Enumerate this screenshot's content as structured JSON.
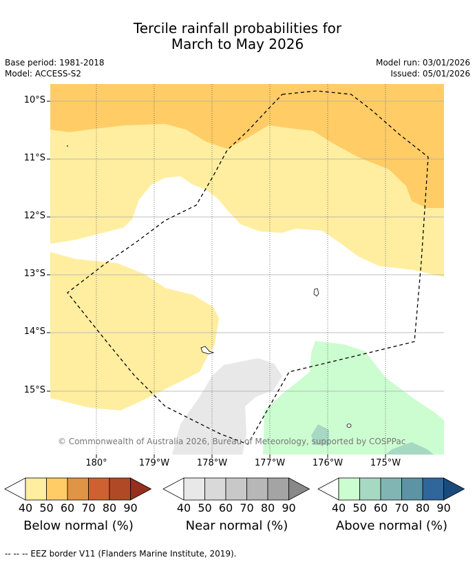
{
  "title_line1": "Tercile rainfall probabilities for",
  "title_line2": "March to May 2026",
  "meta": {
    "base_period": "Base period: 1981-2018",
    "model": "Model: ACCESS-S2",
    "model_run": "Model run: 03/01/2026",
    "issued": "Issued: 05/01/2026"
  },
  "lat_labels": [
    "10°S",
    "11°S",
    "12°S",
    "13°S",
    "14°S",
    "15°S"
  ],
  "lon_labels": [
    "180°",
    "179°W",
    "178°W",
    "177°W",
    "176°W",
    "175°W"
  ],
  "credit": "© Commonwealth of Australia 2026, Bureau of Meteorology, supported by COSPPac",
  "colorbars": [
    {
      "label": "Below normal (%)",
      "ticks": [
        "40",
        "50",
        "60",
        "70",
        "80",
        "90"
      ],
      "colors": [
        "#ffeea0",
        "#ffcc66",
        "#e09446",
        "#cd6230",
        "#b04a26",
        "#962f1f"
      ]
    },
    {
      "label": "Near normal (%)",
      "ticks": [
        "40",
        "50",
        "60",
        "70",
        "80",
        "90"
      ],
      "colors": [
        "#e8e8e8",
        "#d9d9d9",
        "#c8c8c8",
        "#b7b7b7",
        "#a4a4a4",
        "#888888"
      ]
    },
    {
      "label": "Above normal (%)",
      "ticks": [
        "40",
        "50",
        "60",
        "70",
        "80",
        "90"
      ],
      "colors": [
        "#ccfdd0",
        "#a6d8c2",
        "#80b5b3",
        "#5a94a5",
        "#306699",
        "#1a4a7c"
      ]
    }
  ],
  "footer": "--  --  -- EEZ border V11 (Flanders Marine Institute, 2019).",
  "colors": {
    "below_40": "#ffeea0",
    "below_50": "#ffcc66",
    "near_40": "#e8e8e8",
    "above_40": "#ccfdd0",
    "above_50": "#a6d8c2"
  }
}
